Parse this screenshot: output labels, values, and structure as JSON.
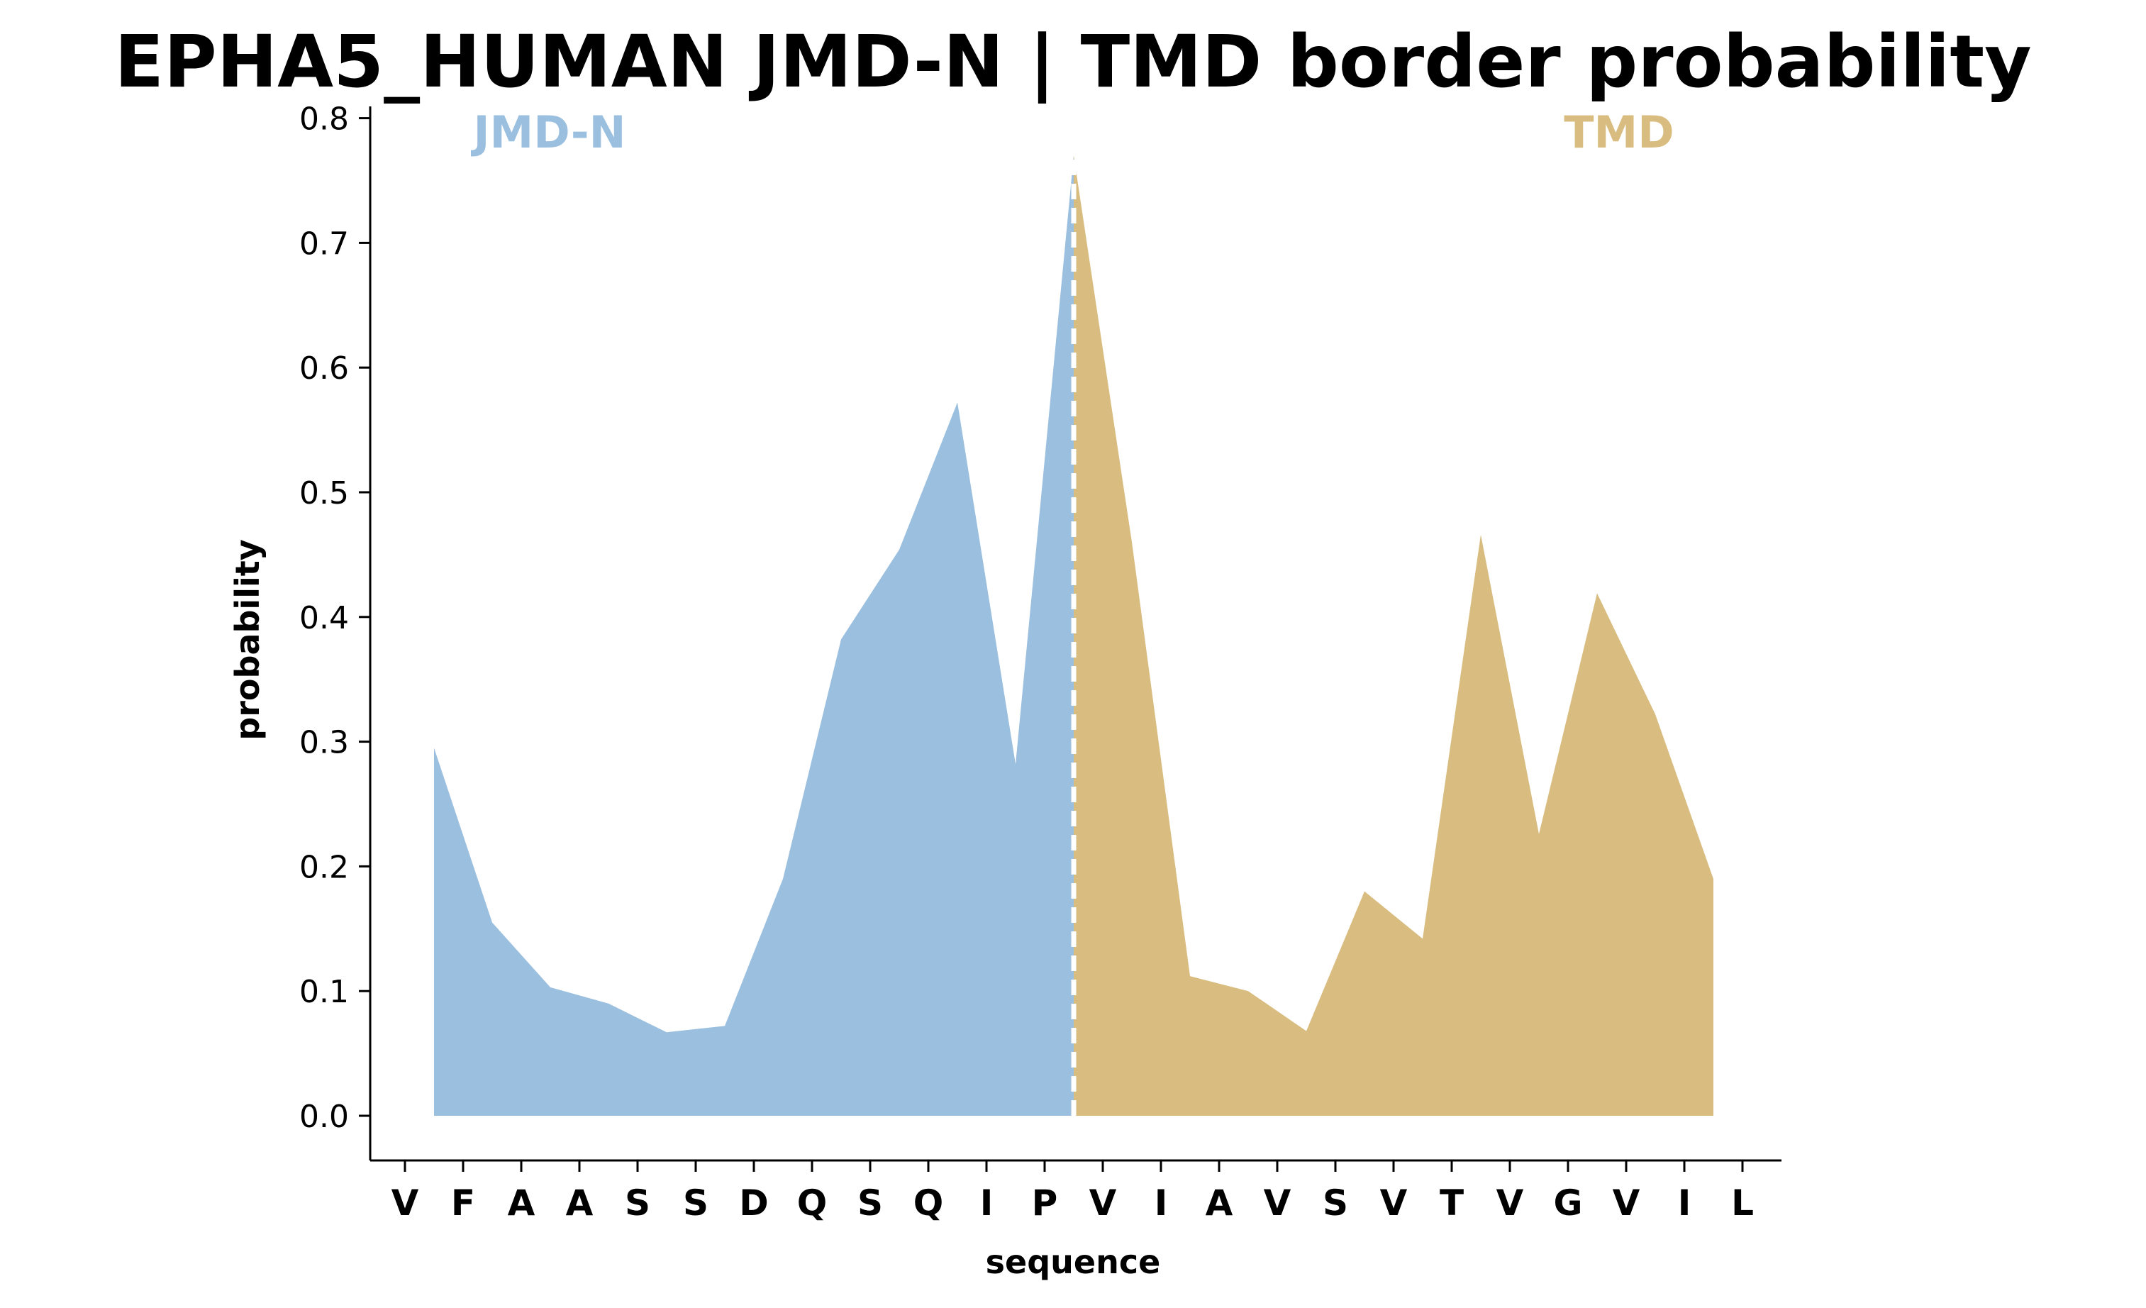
{
  "chart_data": {
    "type": "area",
    "title": "EPHA5_HUMAN JMD-N | TMD border probability",
    "xlabel": "sequence",
    "ylabel": "probability",
    "ylim": [
      -0.037,
      0.81
    ],
    "yticks": [
      "0.0",
      "0.1",
      "0.2",
      "0.3",
      "0.4",
      "0.5",
      "0.6",
      "0.7",
      "0.8"
    ],
    "ytick_values": [
      0.0,
      0.1,
      0.2,
      0.3,
      0.4,
      0.5,
      0.6,
      0.7,
      0.8
    ],
    "categories": [
      "V",
      "F",
      "A",
      "A",
      "S",
      "S",
      "D",
      "Q",
      "S",
      "Q",
      "I",
      "P",
      "V",
      "I",
      "A",
      "V",
      "S",
      "V",
      "T",
      "V",
      "G",
      "V",
      "I",
      "L"
    ],
    "x": [
      0.5,
      1.5,
      2.5,
      3.5,
      4.5,
      5.5,
      6.5,
      7.5,
      8.5,
      9.5,
      10.5,
      11.5,
      12.5,
      13.5,
      14.5,
      15.5,
      16.5,
      17.5,
      18.5,
      19.5,
      20.5,
      21.5,
      22.5
    ],
    "values": [
      0.295,
      0.155,
      0.103,
      0.09,
      0.067,
      0.072,
      0.19,
      0.382,
      0.454,
      0.572,
      0.282,
      0.77,
      0.46,
      0.112,
      0.1,
      0.068,
      0.18,
      0.142,
      0.466,
      0.226,
      0.419,
      0.322,
      0.19
    ],
    "border_x": 11.5,
    "series": [
      {
        "name": "JMD-N",
        "color": "#9bbfdf",
        "x_range": [
          0.5,
          11.5
        ]
      },
      {
        "name": "TMD",
        "color": "#d9bd80",
        "x_range": [
          11.5,
          22.5
        ]
      }
    ],
    "border_line_color": "#ffffff",
    "grid": false,
    "legend": "none"
  }
}
